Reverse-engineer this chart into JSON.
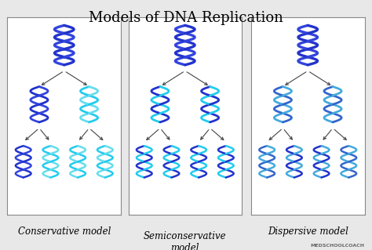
{
  "title": "Models of DNA Replication",
  "title_fontsize": 13,
  "background_color": "#e8e8e8",
  "panel_background": "#ffffff",
  "labels": [
    "Conservative model",
    "Semiconservative\nmodel",
    "Dispersive model"
  ],
  "label_fontsize": 8.5,
  "colors": {
    "dark_blue": "#2233cc",
    "dark_blue2": "#3344dd",
    "cyan": "#22ccee",
    "light_cyan": "#66ddee",
    "mixed1": "#3366cc",
    "mixed2": "#44aadd"
  },
  "logo_text": "MEDSCHOOLCOACH",
  "logo_fontsize": 4.5,
  "panel_border": "#888888",
  "arrow_color": "#444444"
}
